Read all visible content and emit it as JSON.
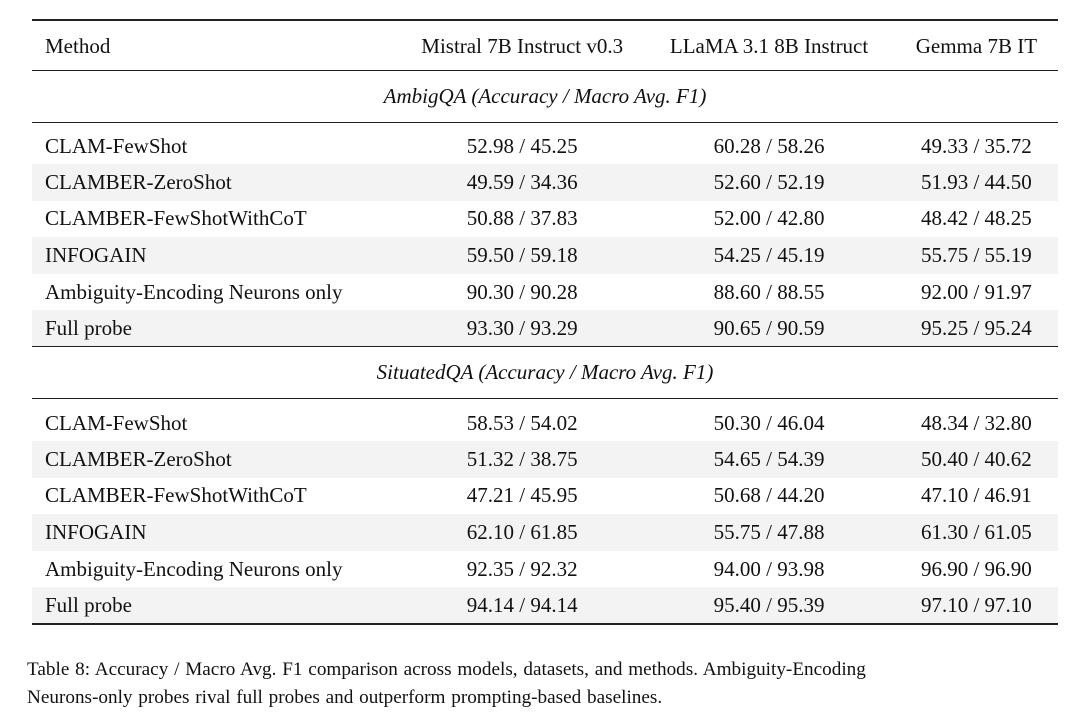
{
  "columns": [
    "Method",
    "Mistral 7B Instruct v0.3",
    "LLaMA 3.1 8B Instruct",
    "Gemma 7B IT"
  ],
  "sections": [
    {
      "title": "AmbigQA (Accuracy / Macro Avg. F1)",
      "rows": [
        {
          "method": "CLAM-FewShot",
          "mistral": "52.98 / 45.25",
          "llama": "60.28 / 58.26",
          "gemma": "49.33 / 35.72"
        },
        {
          "method": "CLAMBER-ZeroShot",
          "mistral": "49.59 / 34.36",
          "llama": "52.60 / 52.19",
          "gemma": "51.93 / 44.50"
        },
        {
          "method": "CLAMBER-FewShotWithCoT",
          "mistral": "50.88 / 37.83",
          "llama": "52.00 / 42.80",
          "gemma": "48.42 / 48.25"
        },
        {
          "method": "INFOGAIN",
          "mistral": "59.50 / 59.18",
          "llama": "54.25 / 45.19",
          "gemma": "55.75 / 55.19"
        },
        {
          "method": "Ambiguity-Encoding Neurons only",
          "mistral": "90.30 / 90.28",
          "llama": "88.60 / 88.55",
          "gemma": "92.00 / 91.97"
        },
        {
          "method": "Full probe",
          "mistral": "93.30 / 93.29",
          "llama": "90.65 / 90.59",
          "gemma": "95.25 / 95.24"
        }
      ]
    },
    {
      "title": "SituatedQA (Accuracy / Macro Avg. F1)",
      "rows": [
        {
          "method": "CLAM-FewShot",
          "mistral": "58.53 / 54.02",
          "llama": "50.30 / 46.04",
          "gemma": "48.34 / 32.80"
        },
        {
          "method": "CLAMBER-ZeroShot",
          "mistral": "51.32 / 38.75",
          "llama": "54.65 / 54.39",
          "gemma": "50.40 / 40.62"
        },
        {
          "method": "CLAMBER-FewShotWithCoT",
          "mistral": "47.21 / 45.95",
          "llama": "50.68 / 44.20",
          "gemma": "47.10 / 46.91"
        },
        {
          "method": "INFOGAIN",
          "mistral": "62.10 / 61.85",
          "llama": "55.75 / 47.88",
          "gemma": "61.30 / 61.05"
        },
        {
          "method": "Ambiguity-Encoding Neurons only",
          "mistral": "92.35 / 92.32",
          "llama": "94.00 / 93.98",
          "gemma": "96.90 / 96.90"
        },
        {
          "method": "Full probe",
          "mistral": "94.14 / 94.14",
          "llama": "95.40 / 95.39",
          "gemma": "97.10 / 97.10"
        }
      ]
    }
  ],
  "caption": {
    "line1": "Table 8: Accuracy / Macro Avg. F1 comparison across models, datasets, and methods. Ambiguity-Encoding",
    "line2": "Neurons-only probes rival full probes and outperform prompting-based baselines."
  }
}
